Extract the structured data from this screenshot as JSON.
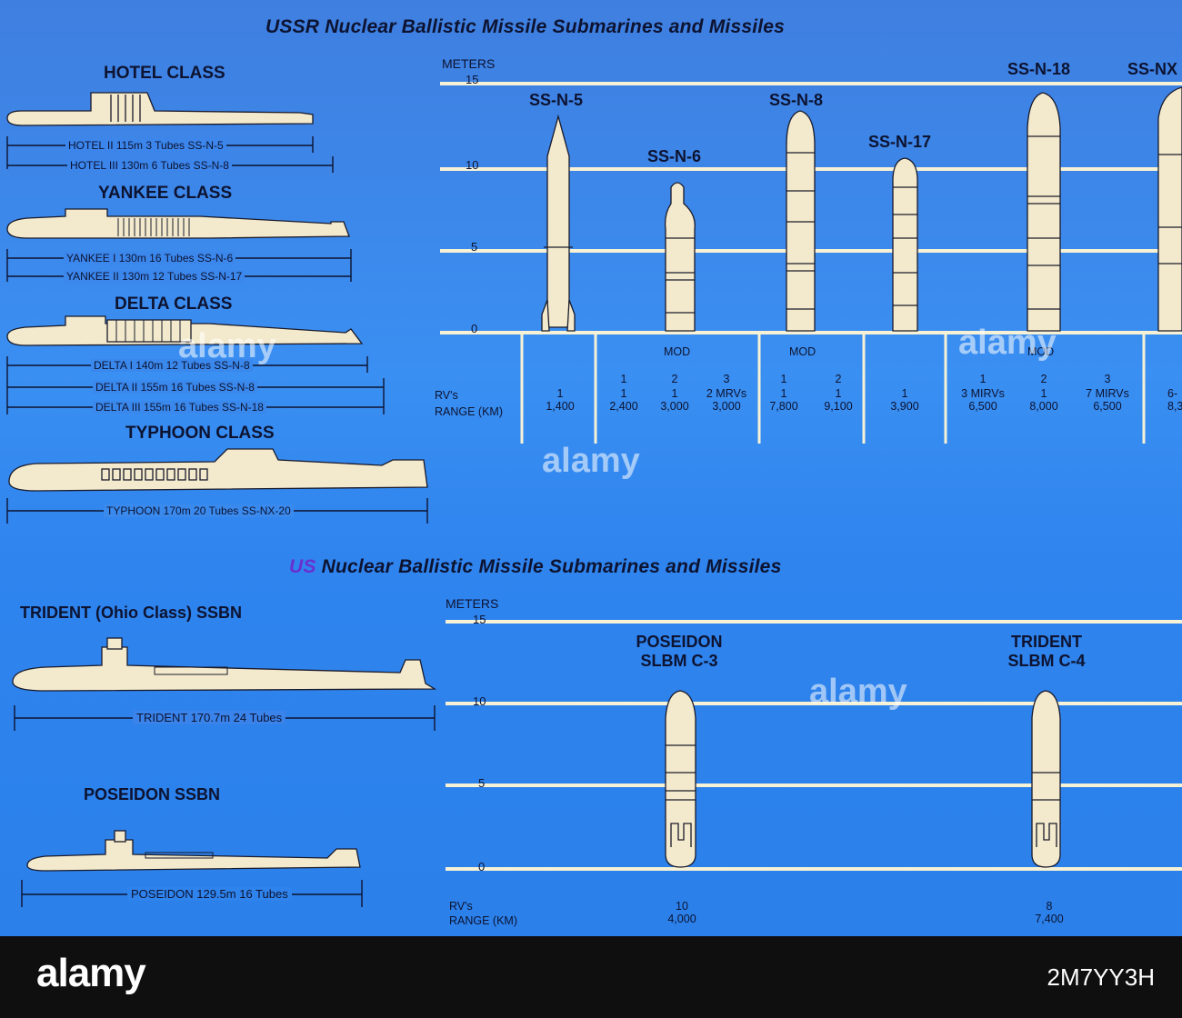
{
  "ussr": {
    "title_prefix": "USSR",
    "title_rest": " Nuclear Ballistic Missile Submarines and Missiles",
    "classes": [
      {
        "name": "HOTEL CLASS",
        "specs": [
          "HOTEL II 115m 3 Tubes SS-N-5",
          "HOTEL III 130m 6 Tubes SS-N-8"
        ]
      },
      {
        "name": "YANKEE CLASS",
        "specs": [
          "YANKEE I 130m 16 Tubes SS-N-6",
          "YANKEE II 130m 12 Tubes  SS-N-17"
        ]
      },
      {
        "name": "DELTA CLASS",
        "specs": [
          "DELTA I 140m 12 Tubes SS-N-8",
          "DELTA II 155m 16 Tubes SS-N-8",
          "DELTA III 155m 16 Tubes SS-N-18"
        ]
      },
      {
        "name": "TYPHOON CLASS",
        "specs": [
          "TYPHOON 170m 20 Tubes SS-NX-20"
        ]
      }
    ],
    "axis_label": "METERS",
    "ticks": [
      "15",
      "10",
      "5",
      "0"
    ],
    "missiles": [
      "SS-N-5",
      "SS-N-6",
      "SS-N-8",
      "SS-N-17",
      "SS-N-18",
      "SS-NX"
    ],
    "mod_label": "MOD",
    "rv_label": "RV's",
    "range_label": "RANGE (KM)",
    "columns": [
      {
        "mod": "",
        "rv": "1",
        "range": "1,400"
      },
      {
        "mod": "1",
        "rv": "1",
        "range": "2,400"
      },
      {
        "mod": "2",
        "rv": "1",
        "range": "3,000"
      },
      {
        "mod": "3",
        "rv": "2 MRVs",
        "range": "3,000"
      },
      {
        "mod": "1",
        "rv": "1",
        "range": "7,800"
      },
      {
        "mod": "2",
        "rv": "1",
        "range": "9,100"
      },
      {
        "mod": "",
        "rv": "1",
        "range": "3,900"
      },
      {
        "mod": "1",
        "rv": "3 MIRVs",
        "range": "6,500"
      },
      {
        "mod": "2",
        "rv": "1",
        "range": "8,000"
      },
      {
        "mod": "3",
        "rv": "7 MIRVs",
        "range": "6,500"
      },
      {
        "mod": "",
        "rv": "6-",
        "range": "8,3"
      }
    ]
  },
  "us": {
    "title_prefix": "US",
    "title_rest": " Nuclear Ballistic Missile Submarines and Missiles",
    "subs": [
      {
        "name": "TRIDENT (Ohio Class) SSBN",
        "spec": "TRIDENT 170.7m 24 Tubes"
      },
      {
        "name": "POSEIDON SSBN",
        "spec": "POSEIDON 129.5m 16 Tubes"
      }
    ],
    "axis_label": "METERS",
    "ticks": [
      "15",
      "10",
      "5",
      "0"
    ],
    "missiles": [
      {
        "line1": "POSEIDON",
        "line2": "SLBM C-3",
        "rv": "10",
        "range": "4,000"
      },
      {
        "line1": "TRIDENT",
        "line2": "SLBM C-4",
        "rv": "8",
        "range": "7,400"
      }
    ],
    "rv_label": "RV's",
    "range_label": "RANGE (KM)"
  },
  "footer": {
    "logo": "alamy",
    "stock_id": "2M7YY3H",
    "watermark": "alamy"
  }
}
